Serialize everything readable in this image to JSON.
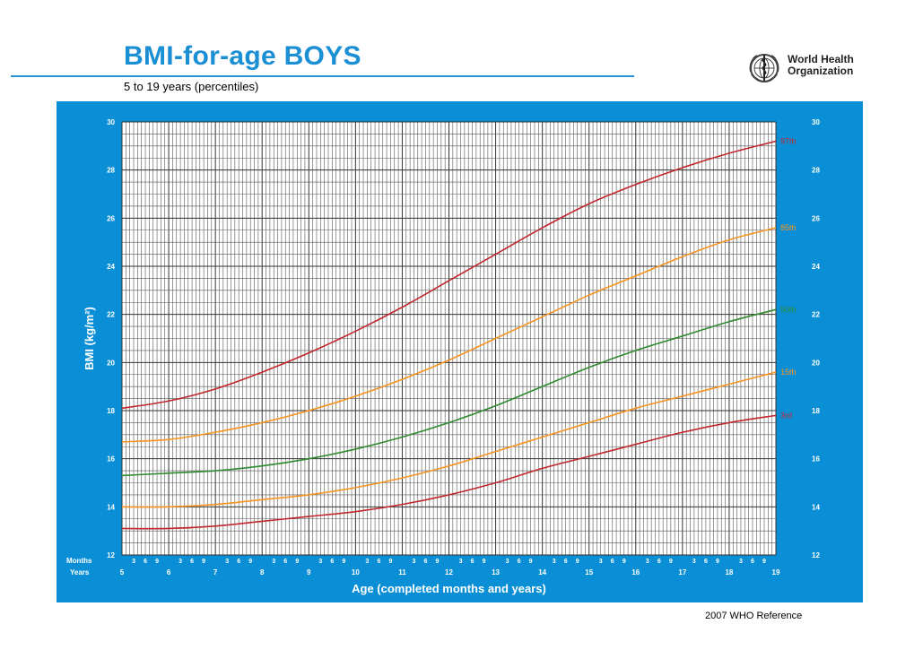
{
  "header": {
    "title": "BMI-for-age  BOYS",
    "subtitle": "5 to 19 years (percentiles)",
    "org_line1": "World Health",
    "org_line2": "Organization",
    "logo_icon": "who-emblem-icon"
  },
  "footer": {
    "reference": "2007  WHO Reference"
  },
  "colors": {
    "brand_blue": "#0a8fd6",
    "p3": "#c1272d",
    "p15": "#f7931e",
    "p50": "#2e8b2e",
    "p85": "#f7931e",
    "p97": "#c1272d"
  },
  "chart_data": {
    "type": "line",
    "title": "BMI-for-age  BOYS",
    "subtitle": "5 to 19 years (percentiles)",
    "xlabel": "Age (completed months and years)",
    "ylabel": "BMI (kg/m²)",
    "x_row_labels": [
      "Months",
      "Years"
    ],
    "xlim": [
      5,
      19
    ],
    "ylim": [
      12,
      30
    ],
    "grid": true,
    "y_ticks": [
      12,
      14,
      16,
      18,
      20,
      22,
      24,
      26,
      28,
      30
    ],
    "x_year_ticks": [
      "5",
      "6",
      "7",
      "8",
      "9",
      "10",
      "11",
      "12",
      "13",
      "14",
      "15",
      "16",
      "17",
      "18",
      "19"
    ],
    "x_month_ticks": [
      "3",
      "6",
      "9"
    ],
    "x": [
      5,
      6,
      7,
      8,
      9,
      10,
      11,
      12,
      13,
      14,
      15,
      16,
      17,
      18,
      19
    ],
    "series": [
      {
        "name": "97th",
        "color": "#c1272d",
        "values": [
          18.1,
          18.4,
          18.9,
          19.6,
          20.4,
          21.3,
          22.3,
          23.4,
          24.5,
          25.6,
          26.6,
          27.4,
          28.1,
          28.7,
          29.2
        ]
      },
      {
        "name": "85th",
        "color": "#f7931e",
        "values": [
          16.7,
          16.8,
          17.1,
          17.5,
          18.0,
          18.6,
          19.3,
          20.1,
          21.0,
          21.9,
          22.8,
          23.6,
          24.4,
          25.1,
          25.6
        ]
      },
      {
        "name": "50th",
        "color": "#2e8b2e",
        "values": [
          15.3,
          15.4,
          15.5,
          15.7,
          16.0,
          16.4,
          16.9,
          17.5,
          18.2,
          19.0,
          19.8,
          20.5,
          21.1,
          21.7,
          22.2
        ]
      },
      {
        "name": "15th",
        "color": "#f7931e",
        "values": [
          14.0,
          14.0,
          14.1,
          14.3,
          14.5,
          14.8,
          15.2,
          15.7,
          16.3,
          16.9,
          17.5,
          18.1,
          18.6,
          19.1,
          19.6
        ]
      },
      {
        "name": "3rd",
        "color": "#c1272d",
        "values": [
          13.1,
          13.1,
          13.2,
          13.4,
          13.6,
          13.8,
          14.1,
          14.5,
          15.0,
          15.6,
          16.1,
          16.6,
          17.1,
          17.5,
          17.8
        ]
      }
    ]
  }
}
